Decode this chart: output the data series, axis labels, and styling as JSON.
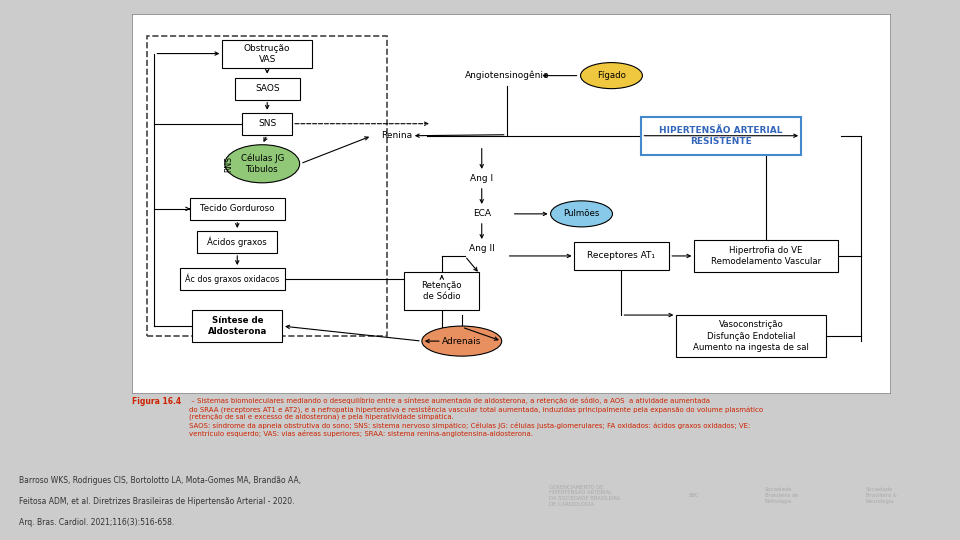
{
  "bg_color": "#cccccc",
  "footer_text_line1": "Barroso WKS, Rodrigues CIS, Bortolotto LA, Mota-Gomes MA, Brandão AA,",
  "footer_text_line2": "Feitosa ADM, et al. Diretrizes Brasileiras de Hipertensão Arterial - 2020.",
  "footer_text_line3": "Arq. Bras. Cardiol. 2021;116(3):516-658.",
  "caption_title": "Figura 16.4",
  "caption_body": " – Sistemas biomoleculares mediando o desequilíbrio entre a síntese aumentada de aldosterona, a retenção de sódio, a AOS  a atividade aumentada\ndo SRAA (receptores AT1 e AT2), e a nefropatia hipertensiva e resistência vascular total aumentada, induzidas principalmente pela expansão do volume plasmático\n(retenção de sal e excesso de aldosterona) e pela hiperatividade simpática.\nSAOS: síndrome da apneia obstrutiva do sono; SNS: sistema nervoso simpático; Células JG: células justa-glomerulares; FA oxidados: ácidos graxos oxidados; VE:\nventrículo esquerdo; VAS: vias aéreas superiores; SRAA: sistema renina-angiotensina-aldosterona."
}
